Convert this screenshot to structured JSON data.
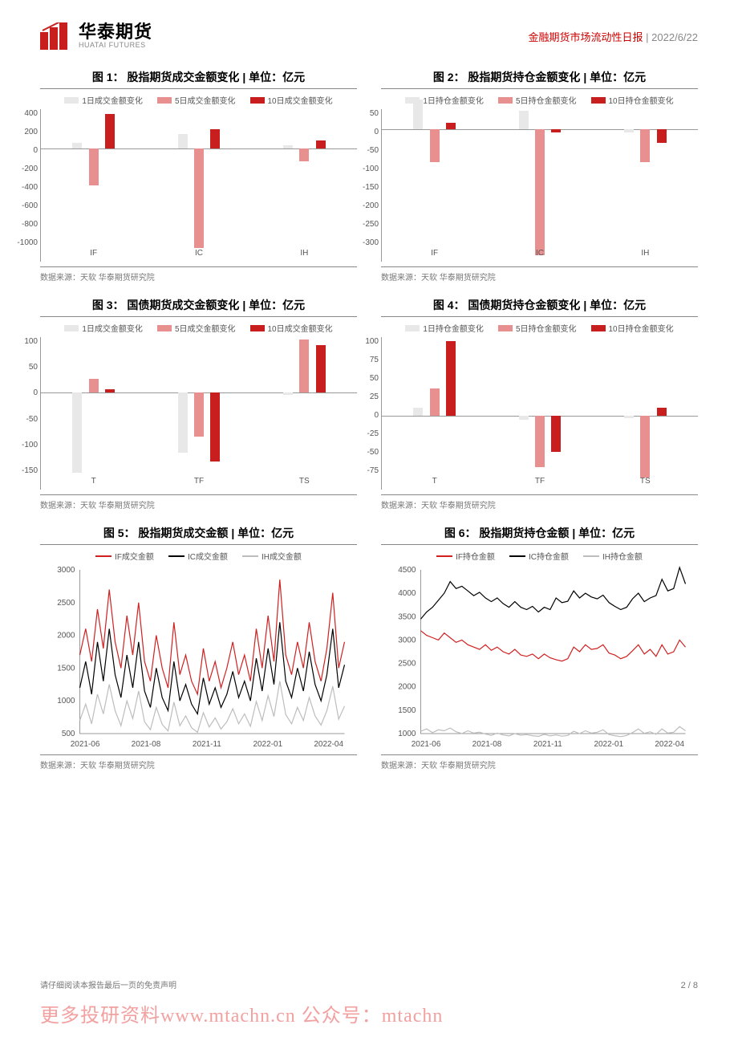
{
  "header": {
    "logo_cn": "华泰期货",
    "logo_en": "HUATAI FUTURES",
    "report_name": "金融期货市场流动性日报",
    "sep": " | ",
    "date": "2022/6/22"
  },
  "colors": {
    "series1": "#e8e8e8",
    "series2": "#e89090",
    "series3": "#c81e1e",
    "line_if": "#d02020",
    "line_ic": "#000000",
    "line_ih": "#bdbdbd",
    "axis": "#999999"
  },
  "charts": [
    {
      "id": "c1",
      "type": "bar",
      "title": "图 1：    股指期货成交金额变化  | 单位：亿元",
      "legend": [
        "1日成交金额变化",
        "5日成交金额变化",
        "10日成交金额变化"
      ],
      "categories": [
        "IF",
        "IC",
        "IH"
      ],
      "ymin": -1000,
      "ymax": 400,
      "ystep": 200,
      "series": [
        [
          60,
          150,
          30
        ],
        [
          -370,
          -1010,
          -130
        ],
        [
          350,
          200,
          80
        ]
      ],
      "source": "数据来源：天软  华泰期货研究院"
    },
    {
      "id": "c2",
      "type": "bar",
      "title": "图 2：    股指期货持仓金额变化  | 单位：亿元",
      "legend": [
        "1日持仓金额变化",
        "5日持仓金额变化",
        "10日持仓金额变化"
      ],
      "categories": [
        "IF",
        "IC",
        "IH"
      ],
      "ymin": -300,
      "ymax": 50,
      "ystep": 50,
      "series": [
        [
          75,
          45,
          -10
        ],
        [
          -85,
          -320,
          -85
        ],
        [
          15,
          -10,
          -35
        ]
      ],
      "source": "数据来源：天软  华泰期货研究院"
    },
    {
      "id": "c3",
      "type": "bar",
      "title": "图 3：    国债期货成交金额变化  | 单位：亿元",
      "legend": [
        "1日成交金额变化",
        "5日成交金额变化",
        "10日成交金额变化"
      ],
      "categories": [
        "T",
        "TF",
        "TS"
      ],
      "ymin": -150,
      "ymax": 100,
      "ystep": 50,
      "series": [
        [
          -145,
          -110,
          -5
        ],
        [
          25,
          -80,
          95
        ],
        [
          5,
          -125,
          85
        ]
      ],
      "source": "数据来源：天软  华泰期货研究院"
    },
    {
      "id": "c4",
      "type": "bar",
      "title": "图 4：    国债期货持仓金额变化  | 单位：亿元",
      "legend": [
        "1日持仓金额变化",
        "5日持仓金额变化",
        "10日持仓金额变化"
      ],
      "categories": [
        "T",
        "TF",
        "TS"
      ],
      "ymin": -75,
      "ymax": 100,
      "ystep": 25,
      "series": [
        [
          10,
          -5,
          -3
        ],
        [
          35,
          -65,
          -78
        ],
        [
          95,
          -45,
          10
        ]
      ],
      "source": "数据来源：天软  华泰期货研究院"
    },
    {
      "id": "c5",
      "type": "line",
      "title": "图 5：    股指期货成交金额  | 单位：亿元",
      "legend": [
        "IF成交金额",
        "IC成交金额",
        "IH成交金额"
      ],
      "xlabels": [
        "2021-06",
        "2021-08",
        "2021-11",
        "2022-01",
        "2022-04"
      ],
      "ymin": 500,
      "ymax": 3000,
      "ystep": 500,
      "line_colors": [
        "line_if",
        "line_ic",
        "line_ih"
      ],
      "series": [
        [
          1700,
          2100,
          1600,
          2400,
          1800,
          2700,
          1900,
          1500,
          2300,
          1700,
          2500,
          1600,
          1300,
          2000,
          1500,
          1200,
          2200,
          1400,
          1700,
          1300,
          1100,
          1800,
          1300,
          1600,
          1200,
          1500,
          1900,
          1400,
          1700,
          1300,
          2100,
          1500,
          2300,
          1600,
          2850,
          1700,
          1400,
          1900,
          1500,
          2200,
          1600,
          1300,
          1800,
          2650,
          1500,
          1900
        ],
        [
          1200,
          1600,
          1100,
          1900,
          1300,
          2100,
          1400,
          1050,
          1700,
          1200,
          1900,
          1150,
          900,
          1500,
          1050,
          850,
          1600,
          1000,
          1250,
          950,
          800,
          1350,
          950,
          1200,
          900,
          1100,
          1450,
          1050,
          1300,
          1000,
          1650,
          1150,
          1800,
          1250,
          2200,
          1300,
          1050,
          1500,
          1150,
          1750,
          1250,
          1000,
          1400,
          2100,
          1200,
          1550
        ],
        [
          700,
          950,
          650,
          1100,
          800,
          1250,
          850,
          620,
          1000,
          730,
          1150,
          680,
          560,
          900,
          640,
          540,
          980,
          620,
          770,
          590,
          520,
          820,
          600,
          740,
          570,
          680,
          880,
          650,
          800,
          610,
          990,
          700,
          1080,
          760,
          1300,
          790,
          650,
          900,
          700,
          1050,
          770,
          630,
          850,
          1220,
          720,
          920
        ]
      ],
      "source": "数据来源：天软  华泰期货研究院"
    },
    {
      "id": "c6",
      "type": "line",
      "title": "图 6：    股指期货持仓金额  | 单位：亿元",
      "legend": [
        "IF持仓金额",
        "IC持仓金额",
        "IH持仓金额"
      ],
      "xlabels": [
        "2021-06",
        "2021-08",
        "2021-11",
        "2022-01",
        "2022-04"
      ],
      "ymin": 1000,
      "ymax": 4500,
      "ystep": 500,
      "line_colors": [
        "line_if",
        "line_ic",
        "line_ih"
      ],
      "series": [
        [
          3200,
          3100,
          3050,
          3000,
          3150,
          3050,
          2950,
          3000,
          2900,
          2850,
          2800,
          2900,
          2780,
          2850,
          2750,
          2700,
          2800,
          2680,
          2650,
          2700,
          2600,
          2700,
          2620,
          2580,
          2550,
          2600,
          2850,
          2750,
          2900,
          2800,
          2820,
          2900,
          2720,
          2680,
          2600,
          2650,
          2770,
          2900,
          2700,
          2800,
          2650,
          2900,
          2700,
          2750,
          3000,
          2850
        ],
        [
          3450,
          3600,
          3700,
          3850,
          4000,
          4250,
          4100,
          4150,
          4050,
          3950,
          4020,
          3900,
          3820,
          3900,
          3780,
          3700,
          3820,
          3700,
          3650,
          3720,
          3600,
          3700,
          3650,
          3900,
          3800,
          3830,
          4050,
          3900,
          4000,
          3920,
          3880,
          3960,
          3800,
          3720,
          3650,
          3700,
          3880,
          4000,
          3820,
          3900,
          3950,
          4300,
          4050,
          4100,
          4550,
          4200
        ],
        [
          1050,
          1100,
          1020,
          1080,
          1060,
          1120,
          1040,
          1000,
          1060,
          1010,
          1030,
          990,
          960,
          1010,
          970,
          950,
          1000,
          965,
          980,
          955,
          940,
          985,
          950,
          970,
          945,
          960,
          1050,
          1000,
          1060,
          1010,
          1030,
          1080,
          980,
          955,
          935,
          960,
          1020,
          1100,
          1005,
          1040,
          985,
          1100,
          1010,
          1030,
          1150,
          1060
        ]
      ],
      "source": "数据来源：天软  华泰期货研究院"
    }
  ],
  "footer": {
    "disclaimer": "请仔细阅读本报告最后一页的免责声明",
    "page": "2 / 8",
    "watermark": "更多投研资料www.mtachn.cn 公众号：mtachn"
  }
}
